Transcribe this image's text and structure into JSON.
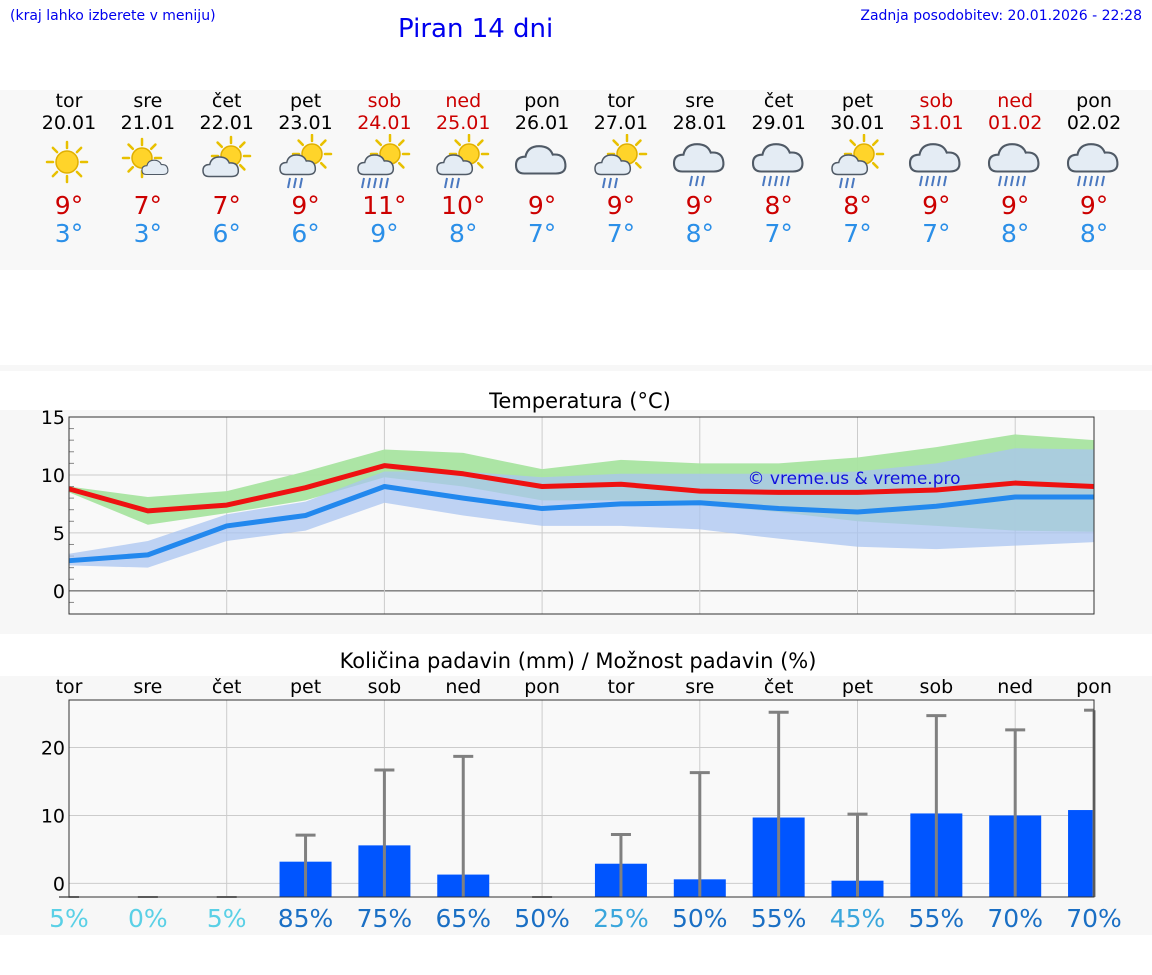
{
  "header": {
    "hint": "(kraj lahko izberete v meniju)",
    "title": "Piran 14 dni",
    "updated": "Zadnja posodobitev: 20.01.2026 - 22:28"
  },
  "days": [
    {
      "name": "tor",
      "date": "20.01",
      "weekend": false,
      "icon": "sun-icon",
      "tmax": "9°",
      "tmin": "3°"
    },
    {
      "name": "sre",
      "date": "21.01",
      "weekend": false,
      "icon": "sun-small-cloud-icon",
      "tmax": "7°",
      "tmin": "3°"
    },
    {
      "name": "čet",
      "date": "22.01",
      "weekend": false,
      "icon": "sun-cloud-icon",
      "tmax": "7°",
      "tmin": "6°"
    },
    {
      "name": "pet",
      "date": "23.01",
      "weekend": false,
      "icon": "sun-cloud-rain-icon",
      "tmax": "9°",
      "tmin": "6°"
    },
    {
      "name": "sob",
      "date": "24.01",
      "weekend": true,
      "icon": "sun-cloud-heavy-rain-icon",
      "tmax": "11°",
      "tmin": "9°"
    },
    {
      "name": "ned",
      "date": "25.01",
      "weekend": true,
      "icon": "sun-cloud-rain-icon",
      "tmax": "10°",
      "tmin": "8°"
    },
    {
      "name": "pon",
      "date": "26.01",
      "weekend": false,
      "icon": "cloud-icon",
      "tmax": "9°",
      "tmin": "7°"
    },
    {
      "name": "tor",
      "date": "27.01",
      "weekend": false,
      "icon": "sun-cloud-rain-icon",
      "tmax": "9°",
      "tmin": "7°"
    },
    {
      "name": "sre",
      "date": "28.01",
      "weekend": false,
      "icon": "cloud-rain-icon",
      "tmax": "9°",
      "tmin": "8°"
    },
    {
      "name": "čet",
      "date": "29.01",
      "weekend": false,
      "icon": "cloud-heavy-rain-icon",
      "tmax": "8°",
      "tmin": "7°"
    },
    {
      "name": "pet",
      "date": "30.01",
      "weekend": false,
      "icon": "sun-cloud-rain-icon",
      "tmax": "8°",
      "tmin": "7°"
    },
    {
      "name": "sob",
      "date": "31.01",
      "weekend": true,
      "icon": "cloud-heavy-rain-icon",
      "tmax": "9°",
      "tmin": "7°"
    },
    {
      "name": "ned",
      "date": "01.02",
      "weekend": true,
      "icon": "cloud-heavy-rain-icon",
      "tmax": "9°",
      "tmin": "8°"
    },
    {
      "name": "pon",
      "date": "02.02",
      "weekend": false,
      "icon": "cloud-heavy-rain-icon",
      "tmax": "9°",
      "tmin": "8°"
    }
  ],
  "colors": {
    "max_line": "#ee1111",
    "min_line": "#2288ee",
    "max_band": "#a8e4a0",
    "min_band": "#aac4f0",
    "overlap_band": "#80c8a8",
    "bar": "#0055ff",
    "whisker": "#808080"
  },
  "chart_data": [
    {
      "type": "line",
      "title": "Temperatura (°C)",
      "watermark": "© vreme.us & vreme.pro",
      "ylim": [
        -2,
        15
      ],
      "yticks": [
        0,
        5,
        10,
        15
      ],
      "series": [
        {
          "name": "max",
          "values": [
            8.8,
            6.9,
            7.4,
            8.9,
            10.8,
            10.1,
            9.0,
            9.2,
            8.6,
            8.5,
            8.5,
            8.7,
            9.3,
            9.0
          ]
        },
        {
          "name": "min",
          "values": [
            2.6,
            3.1,
            5.6,
            6.5,
            9.0,
            8.0,
            7.1,
            7.5,
            7.6,
            7.1,
            6.8,
            7.3,
            8.1,
            8.1
          ]
        },
        {
          "name": "max_range_low",
          "values": [
            8.5,
            5.7,
            6.7,
            7.8,
            9.8,
            9.0,
            7.8,
            7.8,
            7.4,
            6.8,
            6.0,
            5.6,
            5.2,
            5.1
          ]
        },
        {
          "name": "max_range_high",
          "values": [
            9.0,
            8.1,
            8.6,
            10.3,
            12.2,
            11.9,
            10.5,
            11.3,
            11.0,
            11.0,
            11.5,
            12.4,
            13.5,
            13.0
          ]
        },
        {
          "name": "min_range_low",
          "values": [
            2.2,
            2.0,
            4.3,
            5.2,
            7.6,
            6.5,
            5.6,
            5.6,
            5.3,
            4.5,
            3.8,
            3.6,
            3.9,
            4.2
          ]
        },
        {
          "name": "min_range_high",
          "values": [
            3.2,
            4.3,
            6.6,
            7.7,
            10.3,
            10.3,
            9.8,
            10.1,
            10.1,
            10.1,
            10.3,
            11.0,
            12.3,
            12.2
          ]
        }
      ]
    },
    {
      "type": "bar",
      "title": "Količina padavin (mm) / Možnost padavin (%)",
      "categories": [
        "tor",
        "sre",
        "čet",
        "pet",
        "sob",
        "ned",
        "pon",
        "tor",
        "sre",
        "čet",
        "pet",
        "sob",
        "ned",
        "pon"
      ],
      "ylim": [
        -2,
        27
      ],
      "yticks": [
        0,
        10,
        20
      ],
      "values": [
        0,
        0,
        0,
        3.2,
        5.6,
        1.3,
        0,
        2.9,
        0.6,
        9.7,
        0.4,
        10.3,
        10.0,
        10.8
      ],
      "error_high": [
        0,
        0,
        0,
        7.1,
        16.7,
        18.7,
        0,
        7.2,
        16.3,
        25.2,
        10.2,
        24.7,
        22.6,
        25.5
      ],
      "probability": [
        "5%",
        "0%",
        "5%",
        "85%",
        "75%",
        "65%",
        "50%",
        "25%",
        "50%",
        "55%",
        "45%",
        "55%",
        "70%",
        "70%"
      ],
      "probability_colors": [
        "#5ad0e6",
        "#5ad0e6",
        "#5ad0e6",
        "#1a6fc4",
        "#1a6fc4",
        "#1a6fc4",
        "#1a6fc4",
        "#3aa6dc",
        "#1a6fc4",
        "#1a6fc4",
        "#3aa6dc",
        "#1a6fc4",
        "#1a6fc4",
        "#1a6fc4"
      ]
    }
  ]
}
